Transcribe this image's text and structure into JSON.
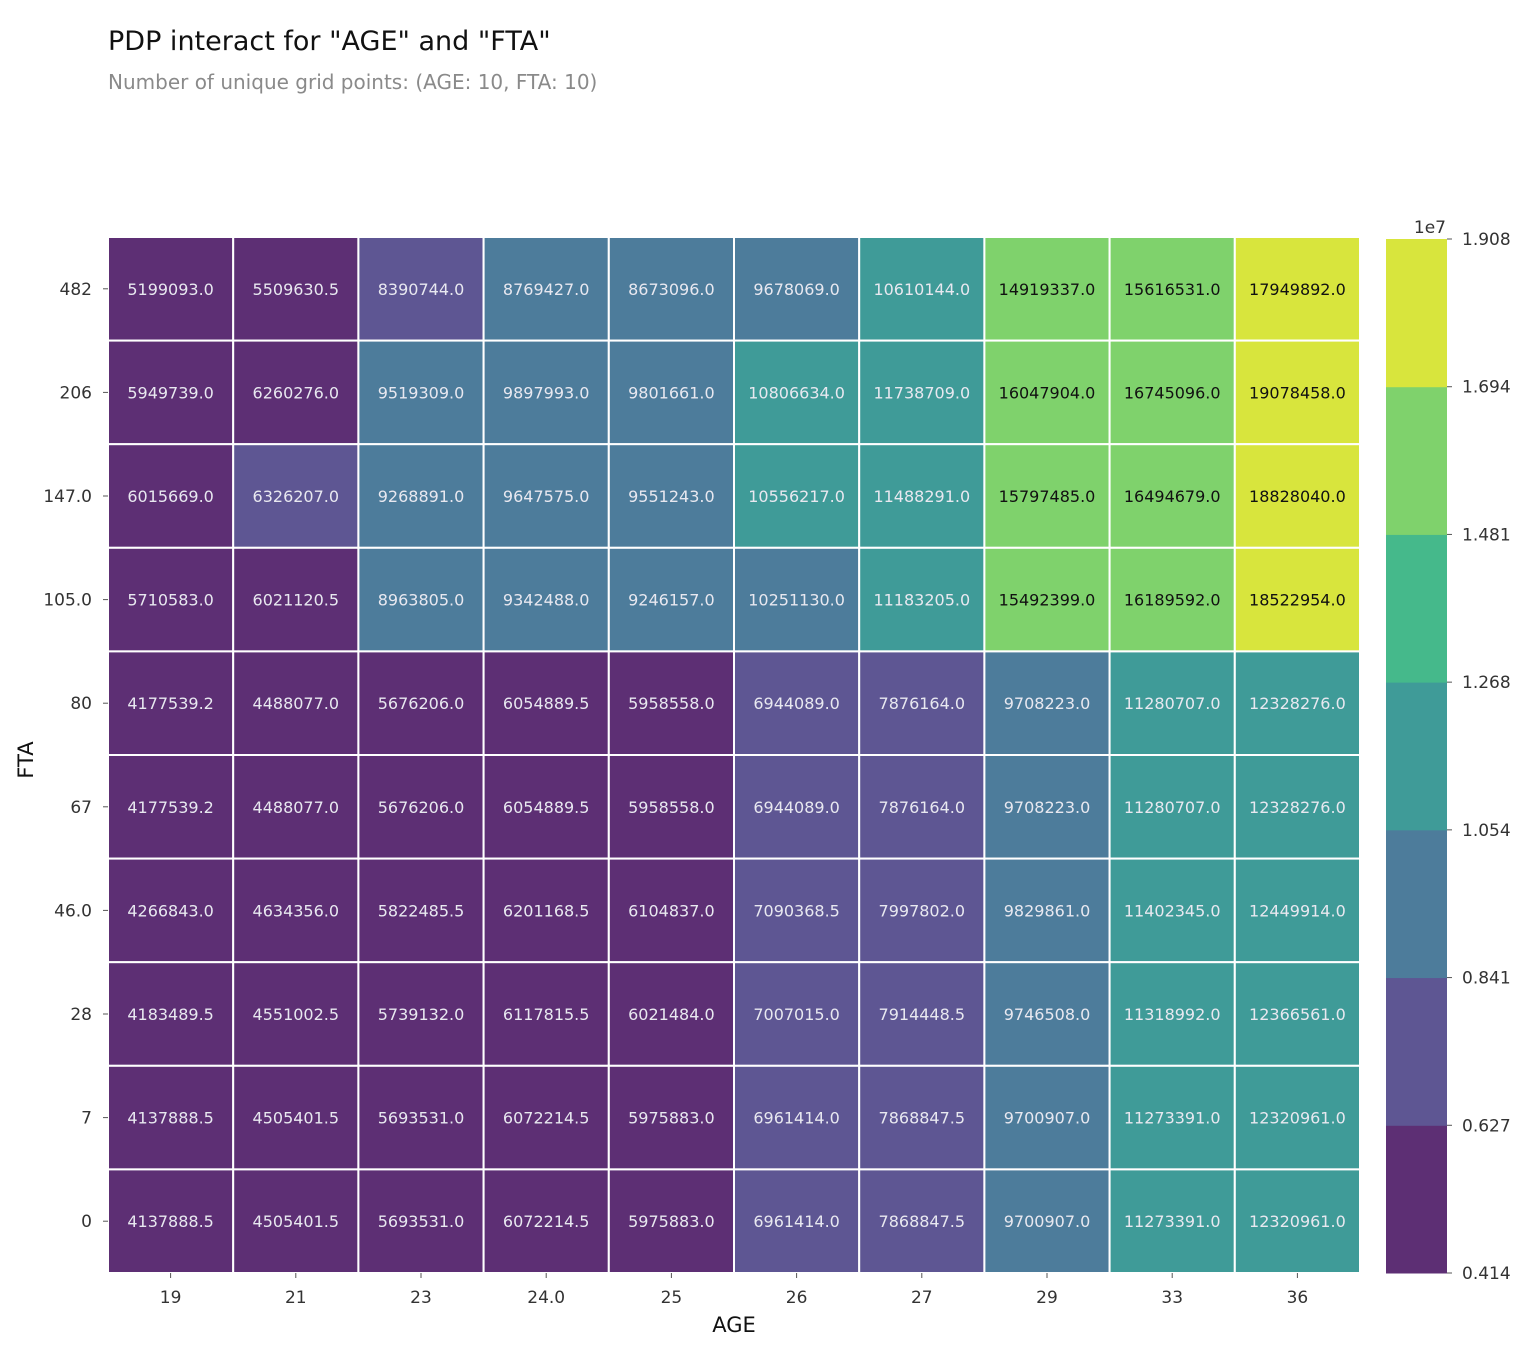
{
  "colors": {
    "palette": [
      "#5d2f74",
      "#5e5693",
      "#4d7c9b",
      "#3f9b98",
      "#45b98b",
      "#7fd26c",
      "#d8e53d",
      "#fbe93f"
    ],
    "label_light": "#e8e8f0",
    "label_dark": "#111111",
    "cell_border": "#ffffff"
  },
  "chart_data": {
    "type": "heatmap",
    "title": "PDP interact for \"AGE\" and \"FTA\"",
    "subtitle": "Number of unique grid points: (AGE: 10, FTA: 10)",
    "xlabel": "AGE",
    "ylabel": "FTA",
    "x_categories": [
      "19",
      "21",
      "23",
      "24.0",
      "25",
      "26",
      "27",
      "29",
      "33",
      "36"
    ],
    "y_categories": [
      "482",
      "206",
      "147.0",
      "105.0",
      "80",
      "67",
      "46.0",
      "28",
      "7",
      "0"
    ],
    "values": [
      [
        "5199093.0",
        "5509630.5",
        "8390744.0",
        "8769427.0",
        "8673096.0",
        "9678069.0",
        "10610144.0",
        "14919337.0",
        "15616531.0",
        "17949892.0"
      ],
      [
        "5949739.0",
        "6260276.0",
        "9519309.0",
        "9897993.0",
        "9801661.0",
        "10806634.0",
        "11738709.0",
        "16047904.0",
        "16745096.0",
        "19078458.0"
      ],
      [
        "6015669.0",
        "6326207.0",
        "9268891.0",
        "9647575.0",
        "9551243.0",
        "10556217.0",
        "11488291.0",
        "15797485.0",
        "16494679.0",
        "18828040.0"
      ],
      [
        "5710583.0",
        "6021120.5",
        "8963805.0",
        "9342488.0",
        "9246157.0",
        "10251130.0",
        "11183205.0",
        "15492399.0",
        "16189592.0",
        "18522954.0"
      ],
      [
        "4177539.2",
        "4488077.0",
        "5676206.0",
        "6054889.5",
        "5958558.0",
        "6944089.0",
        "7876164.0",
        "9708223.0",
        "11280707.0",
        "12328276.0"
      ],
      [
        "4177539.2",
        "4488077.0",
        "5676206.0",
        "6054889.5",
        "5958558.0",
        "6944089.0",
        "7876164.0",
        "9708223.0",
        "11280707.0",
        "12328276.0"
      ],
      [
        "4266843.0",
        "4634356.0",
        "5822485.5",
        "6201168.5",
        "6104837.0",
        "7090368.5",
        "7997802.0",
        "9829861.0",
        "11402345.0",
        "12449914.0"
      ],
      [
        "4183489.5",
        "4551002.5",
        "5739132.0",
        "6117815.5",
        "6021484.0",
        "7007015.0",
        "7914448.5",
        "9746508.0",
        "11318992.0",
        "12366561.0"
      ],
      [
        "4137888.5",
        "4505401.5",
        "5693531.0",
        "6072214.5",
        "5975883.0",
        "6961414.0",
        "7868847.5",
        "9700907.0",
        "11273391.0",
        "12320961.0"
      ],
      [
        "4137888.5",
        "4505401.5",
        "5693531.0",
        "6072214.5",
        "5975883.0",
        "6961414.0",
        "7868847.5",
        "9700907.0",
        "11273391.0",
        "12320961.0"
      ]
    ],
    "colorbar": {
      "multiplier": "1e7",
      "ticks": [
        "1.908",
        "1.694",
        "1.481",
        "1.268",
        "1.054",
        "0.841",
        "0.627",
        "0.414"
      ],
      "min": 0.414,
      "max": 1.908
    },
    "grid": false,
    "legend": "colorbar-right"
  }
}
